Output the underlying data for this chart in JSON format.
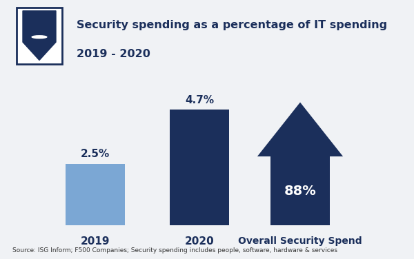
{
  "title_line1": "Security spending as a percentage of IT spending",
  "title_line2": "2019 - 2020",
  "bar_categories": [
    "2019",
    "2020"
  ],
  "bar_values": [
    2.5,
    4.7
  ],
  "bar_labels": [
    "2.5%",
    "4.7%"
  ],
  "bar_colors": [
    "#7BA7D4",
    "#1B2F5B"
  ],
  "arrow_color": "#1B2F5B",
  "arrow_label": "Overall Security Spend",
  "arrow_value_label": "88%",
  "arrow_value_color": "#FFFFFF",
  "source_text": "Source: ISG Inform; F500 Companies; Security spending includes people, software, hardware & services",
  "header_bg_color": "#B0BED0",
  "chart_bg_color": "#F0F2F5",
  "title_color": "#1B2F5B",
  "axis_label_color": "#1B2F5B",
  "value_label_color": "#1B2F5B",
  "source_color": "#333333"
}
